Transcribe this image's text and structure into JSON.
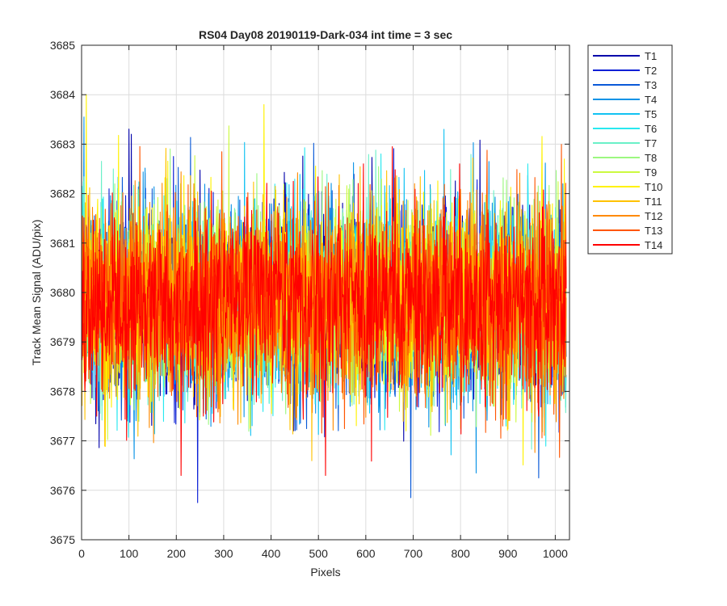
{
  "chart_data": {
    "type": "line",
    "title": "RS04 Day08 20190119-Dark-034 int time = 3 sec",
    "xlabel": "Pixels",
    "ylabel": "Track Mean Signal (ADU/pix)",
    "xlim": [
      0,
      1030
    ],
    "ylim": [
      3675,
      3685
    ],
    "xticks": [
      "0",
      "100",
      "200",
      "300",
      "400",
      "500",
      "600",
      "700",
      "800",
      "900",
      "1000"
    ],
    "yticks": [
      "3675",
      "3676",
      "3677",
      "3678",
      "3679",
      "3680",
      "3681",
      "3682",
      "3683",
      "3684",
      "3685"
    ],
    "grid": true,
    "legend_position": "outside-top-right",
    "series": [
      {
        "name": "T1",
        "color": "#0000aa"
      },
      {
        "name": "T2",
        "color": "#0a1fd6"
      },
      {
        "name": "T3",
        "color": "#0a5ad8"
      },
      {
        "name": "T4",
        "color": "#0a93e6"
      },
      {
        "name": "T5",
        "color": "#12c2f2"
      },
      {
        "name": "T6",
        "color": "#28e8f0"
      },
      {
        "name": "T7",
        "color": "#6af0c8"
      },
      {
        "name": "T8",
        "color": "#9cf880"
      },
      {
        "name": "T9",
        "color": "#ccfa40"
      },
      {
        "name": "T10",
        "color": "#fff200"
      },
      {
        "name": "T11",
        "color": "#ffc200"
      },
      {
        "name": "T12",
        "color": "#ff8a00"
      },
      {
        "name": "T13",
        "color": "#ff5500"
      },
      {
        "name": "T14",
        "color": "#ff0000"
      }
    ],
    "signal_summary": {
      "x_points_per_track": 1024,
      "typical_mean": 3679.8,
      "typical_std": 0.95,
      "annotations": [
        {
          "x": 245,
          "y": 3675.75,
          "series": "T2"
        },
        {
          "x": 695,
          "y": 3675.85,
          "series": "T3"
        },
        {
          "x": 105,
          "y": 3683.2,
          "series": "T1"
        },
        {
          "x": 385,
          "y": 3683.8,
          "series": "T10"
        },
        {
          "x": 10,
          "y": 3684.0,
          "series": "T10"
        },
        {
          "x": 5,
          "y": 3683.55,
          "series": "T4"
        },
        {
          "x": 765,
          "y": 3683.3,
          "series": "T5"
        },
        {
          "x": 515,
          "y": 3676.3,
          "series": "T14"
        },
        {
          "x": 210,
          "y": 3676.3,
          "series": "T14"
        },
        {
          "x": 965,
          "y": 3676.25,
          "series": "T3"
        }
      ]
    }
  }
}
